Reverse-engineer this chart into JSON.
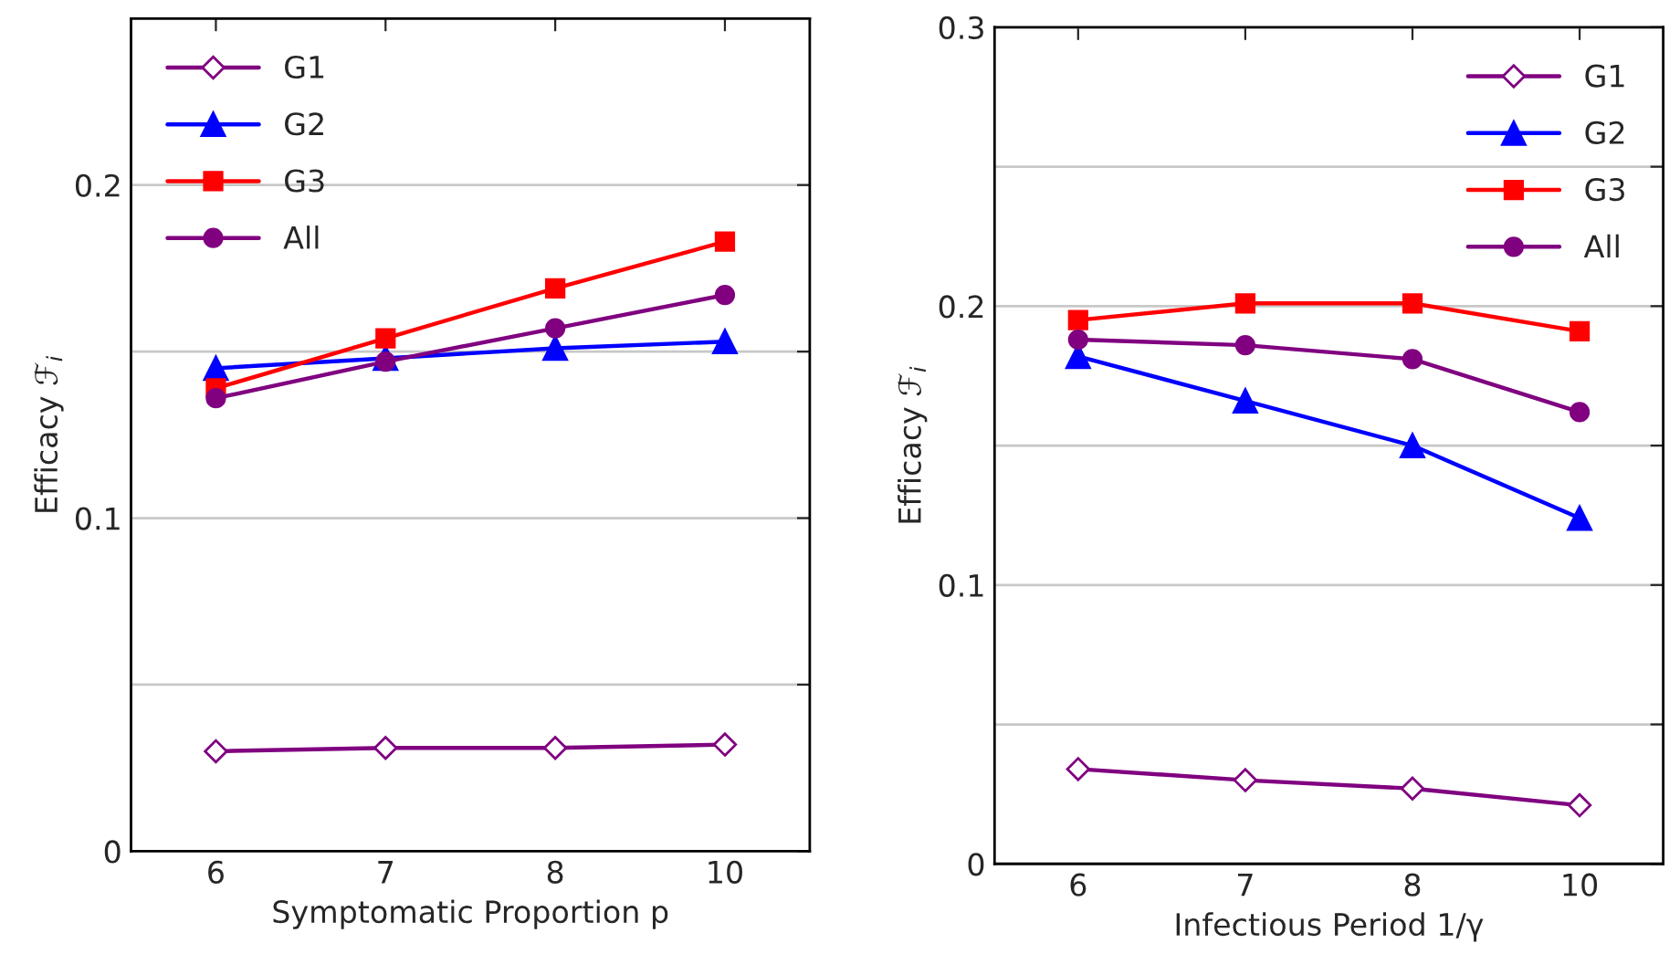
{
  "chart_data": [
    {
      "type": "line",
      "xlabel": "Symptomatic Proportion p",
      "ylabel": "Efficacy ℱ$_{i}$",
      "categories": [
        "6",
        "7",
        "8",
        "10"
      ],
      "ylim": [
        0,
        0.25
      ],
      "yticks": [
        0,
        {
          "value": 0.05,
          "label": null
        },
        0.1,
        {
          "value": 0.15,
          "label": null
        },
        0.2
      ],
      "grid": "y",
      "legend": "top left",
      "series": [
        {
          "name": "G1",
          "color": "#800080",
          "marker": "diamond",
          "values": [
            0.03,
            0.031,
            0.031,
            0.032
          ]
        },
        {
          "name": "G2",
          "color": "#0000ff",
          "marker": "triangle",
          "values": [
            0.145,
            0.148,
            0.151,
            0.153
          ]
        },
        {
          "name": "G3",
          "color": "#ff0000",
          "marker": "square",
          "values": [
            0.139,
            0.154,
            0.169,
            0.183
          ]
        },
        {
          "name": "All",
          "color": "#800080",
          "marker": "circle",
          "values": [
            0.136,
            0.147,
            0.157,
            0.167
          ]
        }
      ]
    },
    {
      "type": "line",
      "xlabel": "Infectious Period 1/γ",
      "ylabel": "Efficacy ℱ$_{i}$",
      "categories": [
        "6",
        "7",
        "8",
        "10"
      ],
      "ylim": [
        0,
        0.3
      ],
      "yticks": [
        0,
        {
          "value": 0.05,
          "label": null
        },
        0.1,
        {
          "value": 0.15,
          "label": null
        },
        0.2,
        {
          "value": 0.25,
          "label": null
        },
        0.3
      ],
      "grid": "y",
      "legend": "top right",
      "series": [
        {
          "name": "G1",
          "color": "#800080",
          "marker": "diamond",
          "values": [
            0.034,
            0.03,
            0.027,
            0.021
          ]
        },
        {
          "name": "G2",
          "color": "#0000ff",
          "marker": "triangle",
          "values": [
            0.182,
            0.166,
            0.15,
            0.124
          ]
        },
        {
          "name": "G3",
          "color": "#ff0000",
          "marker": "square",
          "values": [
            0.195,
            0.201,
            0.201,
            0.191
          ]
        },
        {
          "name": "All",
          "color": "#800080",
          "marker": "circle",
          "values": [
            0.188,
            0.186,
            0.181,
            0.162
          ]
        }
      ]
    }
  ]
}
